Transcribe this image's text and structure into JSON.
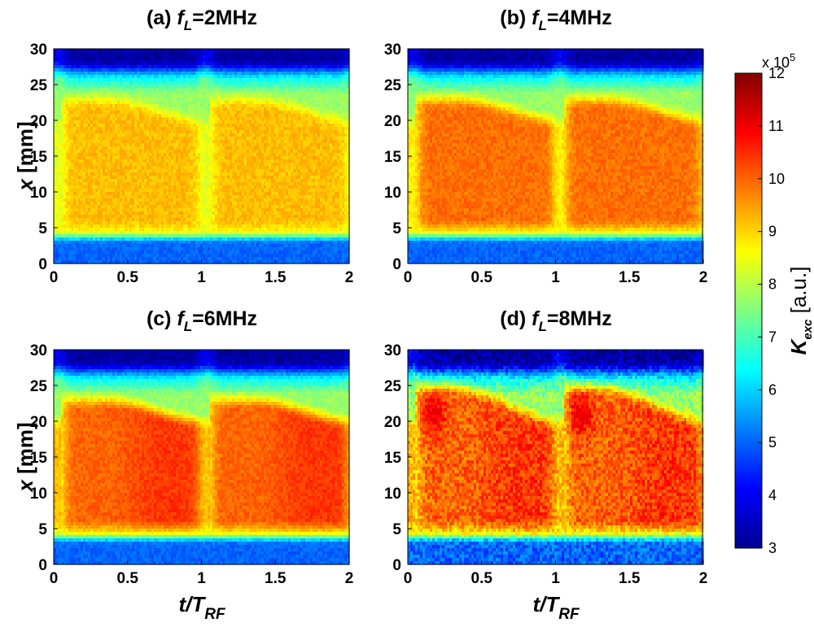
{
  "chart_data": {
    "type": "heatmap",
    "panels": [
      {
        "label": "(a)",
        "symbol": "f",
        "subscript": "L",
        "value": "=2MHz",
        "variant": "2"
      },
      {
        "label": "(b)",
        "symbol": "f",
        "subscript": "L",
        "value": "=4MHz",
        "variant": "4"
      },
      {
        "label": "(c)",
        "symbol": "f",
        "subscript": "L",
        "value": "=6MHz",
        "variant": "6"
      },
      {
        "label": "(d)",
        "symbol": "f",
        "subscript": "L",
        "value": "=8MHz",
        "variant": "8"
      }
    ],
    "x_axis": {
      "range": [
        0,
        2
      ],
      "ticks": [
        "0",
        "0.5",
        "1",
        "1.5",
        "2"
      ],
      "tick_values": [
        0,
        0.5,
        1,
        1.5,
        2
      ],
      "label_main": "t/T",
      "label_sub": "RF"
    },
    "y_axis": {
      "range": [
        0,
        30
      ],
      "ticks": [
        "0",
        "5",
        "10",
        "15",
        "20",
        "25",
        "30"
      ],
      "tick_values": [
        0,
        5,
        10,
        15,
        20,
        25,
        30
      ],
      "label_main": "x",
      "label_unit": " [mm]"
    },
    "colorbar": {
      "range": [
        3,
        12
      ],
      "ticks": [
        "3",
        "4",
        "5",
        "6",
        "7",
        "8",
        "9",
        "10",
        "11",
        "12"
      ],
      "tick_values": [
        3,
        4,
        5,
        6,
        7,
        8,
        9,
        10,
        11,
        12
      ],
      "multiplier": "x 10",
      "multiplier_exp": "5",
      "label_main": "K",
      "label_sub": "exc",
      "label_unit": " [a.u.]",
      "colormap": "jet"
    },
    "peak_level": {
      "2": 9.7,
      "4": 10.4,
      "6": 10.6,
      "8": 10.5
    }
  }
}
